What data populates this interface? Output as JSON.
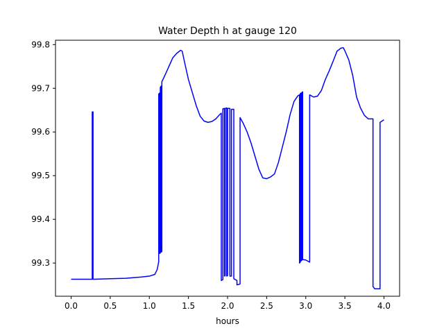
{
  "chart_data": {
    "type": "line",
    "title": "Water Depth h at gauge 120",
    "xlabel": "hours",
    "ylabel": "",
    "xlim": [
      -0.2,
      4.2
    ],
    "ylim": [
      99.224,
      99.81
    ],
    "x_ticks": [
      0.0,
      0.5,
      1.0,
      1.5,
      2.0,
      2.5,
      3.0,
      3.5,
      4.0
    ],
    "x_tick_labels": [
      "0.0",
      "0.5",
      "1.0",
      "1.5",
      "2.0",
      "2.5",
      "3.0",
      "3.5",
      "4.0"
    ],
    "y_ticks": [
      99.3,
      99.4,
      99.5,
      99.6,
      99.7,
      99.8
    ],
    "y_tick_labels": [
      "99.3",
      "99.4",
      "99.5",
      "99.6",
      "99.7",
      "99.8"
    ],
    "grid": false,
    "series": [
      {
        "color": "#0000ff",
        "x": [
          0.0,
          0.27,
          0.27,
          0.28,
          0.28,
          0.29,
          0.29,
          0.5,
          0.7,
          0.9,
          1.0,
          1.07,
          1.1,
          1.12,
          1.12,
          1.13,
          1.13,
          1.14,
          1.14,
          1.15,
          1.15,
          1.16,
          1.16,
          1.2,
          1.25,
          1.3,
          1.35,
          1.4,
          1.42,
          1.45,
          1.5,
          1.55,
          1.6,
          1.65,
          1.7,
          1.75,
          1.8,
          1.85,
          1.9,
          1.92,
          1.92,
          1.94,
          1.94,
          1.96,
          1.96,
          1.97,
          1.97,
          1.99,
          1.99,
          2.0,
          2.0,
          2.03,
          2.03,
          2.05,
          2.05,
          2.08,
          2.08,
          2.12,
          2.12,
          2.16,
          2.16,
          2.2,
          2.25,
          2.3,
          2.35,
          2.4,
          2.45,
          2.5,
          2.55,
          2.6,
          2.65,
          2.7,
          2.75,
          2.8,
          2.85,
          2.9,
          2.92,
          2.92,
          2.93,
          2.93,
          2.94,
          2.94,
          2.95,
          2.95,
          2.96,
          2.96,
          3.0,
          3.05,
          3.05,
          3.1,
          3.15,
          3.2,
          3.25,
          3.3,
          3.35,
          3.4,
          3.45,
          3.48,
          3.5,
          3.55,
          3.6,
          3.65,
          3.7,
          3.75,
          3.8,
          3.86,
          3.86,
          3.87,
          3.88,
          3.95,
          3.95,
          4.0
        ],
        "y": [
          99.263,
          99.263,
          99.646,
          99.646,
          99.263,
          99.263,
          99.263,
          99.264,
          99.265,
          99.268,
          99.27,
          99.274,
          99.285,
          99.303,
          99.687,
          99.689,
          99.322,
          99.323,
          99.702,
          99.705,
          99.325,
          99.326,
          99.715,
          99.73,
          99.75,
          99.77,
          99.78,
          99.787,
          99.785,
          99.76,
          99.72,
          99.69,
          99.66,
          99.636,
          99.625,
          99.622,
          99.624,
          99.63,
          99.64,
          99.643,
          99.26,
          99.262,
          99.653,
          99.654,
          99.27,
          99.271,
          99.654,
          99.655,
          99.27,
          99.271,
          99.654,
          99.654,
          99.27,
          99.27,
          99.652,
          99.652,
          99.264,
          99.26,
          99.25,
          99.252,
          99.633,
          99.62,
          99.6,
          99.575,
          99.545,
          99.515,
          99.495,
          99.493,
          99.497,
          99.504,
          99.53,
          99.565,
          99.6,
          99.64,
          99.67,
          99.683,
          99.685,
          99.3,
          99.302,
          99.688,
          99.689,
          99.305,
          99.306,
          99.69,
          99.692,
          99.308,
          99.307,
          99.302,
          99.685,
          99.68,
          99.682,
          99.695,
          99.72,
          99.74,
          99.762,
          99.785,
          99.792,
          99.793,
          99.786,
          99.765,
          99.73,
          99.68,
          99.655,
          99.638,
          99.63,
          99.63,
          99.246,
          99.244,
          99.241,
          99.241,
          99.622,
          99.628
        ]
      }
    ]
  }
}
